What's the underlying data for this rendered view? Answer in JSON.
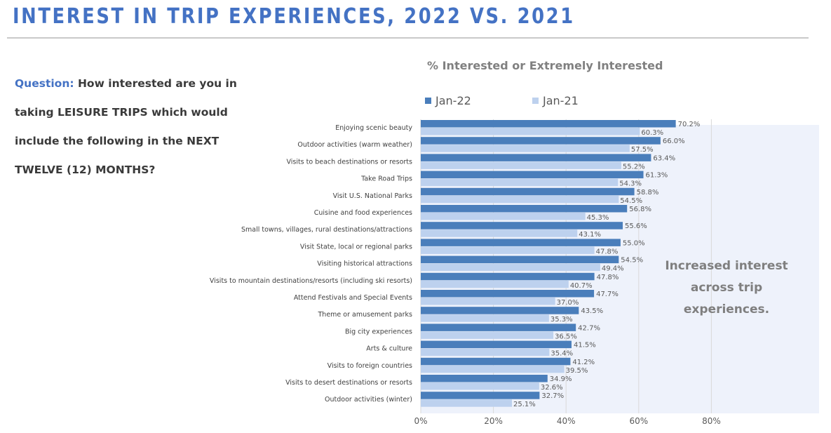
{
  "page": {
    "title": "INTEREST IN TRIP EXPERIENCES, 2022 VS. 2021",
    "question_label": "Question:",
    "question_text": " How interested are you in taking LEISURE TRIPS which would include the following in the NEXT TWELVE (12) MONTHS?",
    "annotation": "Increased interest across trip experiences."
  },
  "colors": {
    "title": "#4472c4",
    "series_2022": "#4a7ebb",
    "series_2021": "#bdd1ee",
    "panel_bg": "#eef2fb",
    "gridline": "#d9d9d9"
  },
  "chart_data": {
    "type": "bar",
    "orientation": "horizontal",
    "title": "% Interested or Extremely Interested",
    "xlabel": "",
    "ylabel": "",
    "xlim": [
      0,
      80
    ],
    "x_ticks": [
      "0%",
      "20%",
      "40%",
      "60%",
      "80%"
    ],
    "x_tick_values": [
      0,
      20,
      40,
      60,
      80
    ],
    "grid": true,
    "legend_position": "top-left",
    "categories": [
      "Enjoying scenic beauty",
      "Outdoor activities (warm weather)",
      "Visits to beach destinations or resorts",
      "Take Road Trips",
      "Visit U.S. National Parks",
      "Cuisine and food experiences",
      "Small towns,  villages, rural destinations/attractions",
      "Visit State, local or regional parks",
      "Visiting historical attractions",
      "Visits to mountain destinations/resorts (including ski resorts)",
      "Attend Festivals and Special Events",
      "Theme or amusement parks",
      "Big city experiences",
      "Arts & culture",
      "Visits to foreign countries",
      "Visits to desert destinations or resorts",
      "Outdoor activities (winter)"
    ],
    "series": [
      {
        "name": "Jan-22",
        "values": [
          70.2,
          66.0,
          63.4,
          61.3,
          58.8,
          56.8,
          55.6,
          55.0,
          54.5,
          47.8,
          47.7,
          43.5,
          42.7,
          41.5,
          41.2,
          34.9,
          32.7
        ],
        "labels": [
          "70.2%",
          "66.0%",
          "63.4%",
          "61.3%",
          "58.8%",
          "56.8%",
          "55.6%",
          "55.0%",
          "54.5%",
          "47.8%",
          "47.7%",
          "43.5%",
          "42.7%",
          "41.5%",
          "41.2%",
          "34.9%",
          "32.7%"
        ]
      },
      {
        "name": "Jan-21",
        "values": [
          60.3,
          57.5,
          55.2,
          54.3,
          54.5,
          45.3,
          43.1,
          47.8,
          49.4,
          40.7,
          37.0,
          35.3,
          36.5,
          35.4,
          39.5,
          32.6,
          25.1
        ],
        "labels": [
          "60.3%",
          "57.5%",
          "55.2%",
          "54.3%",
          "54.5%",
          "45.3%",
          "43.1%",
          "47.8%",
          "49.4%",
          "40.7%",
          "37.0%",
          "35.3%",
          "36.5%",
          "35.4%",
          "39.5%",
          "32.6%",
          "25.1%"
        ]
      }
    ]
  }
}
